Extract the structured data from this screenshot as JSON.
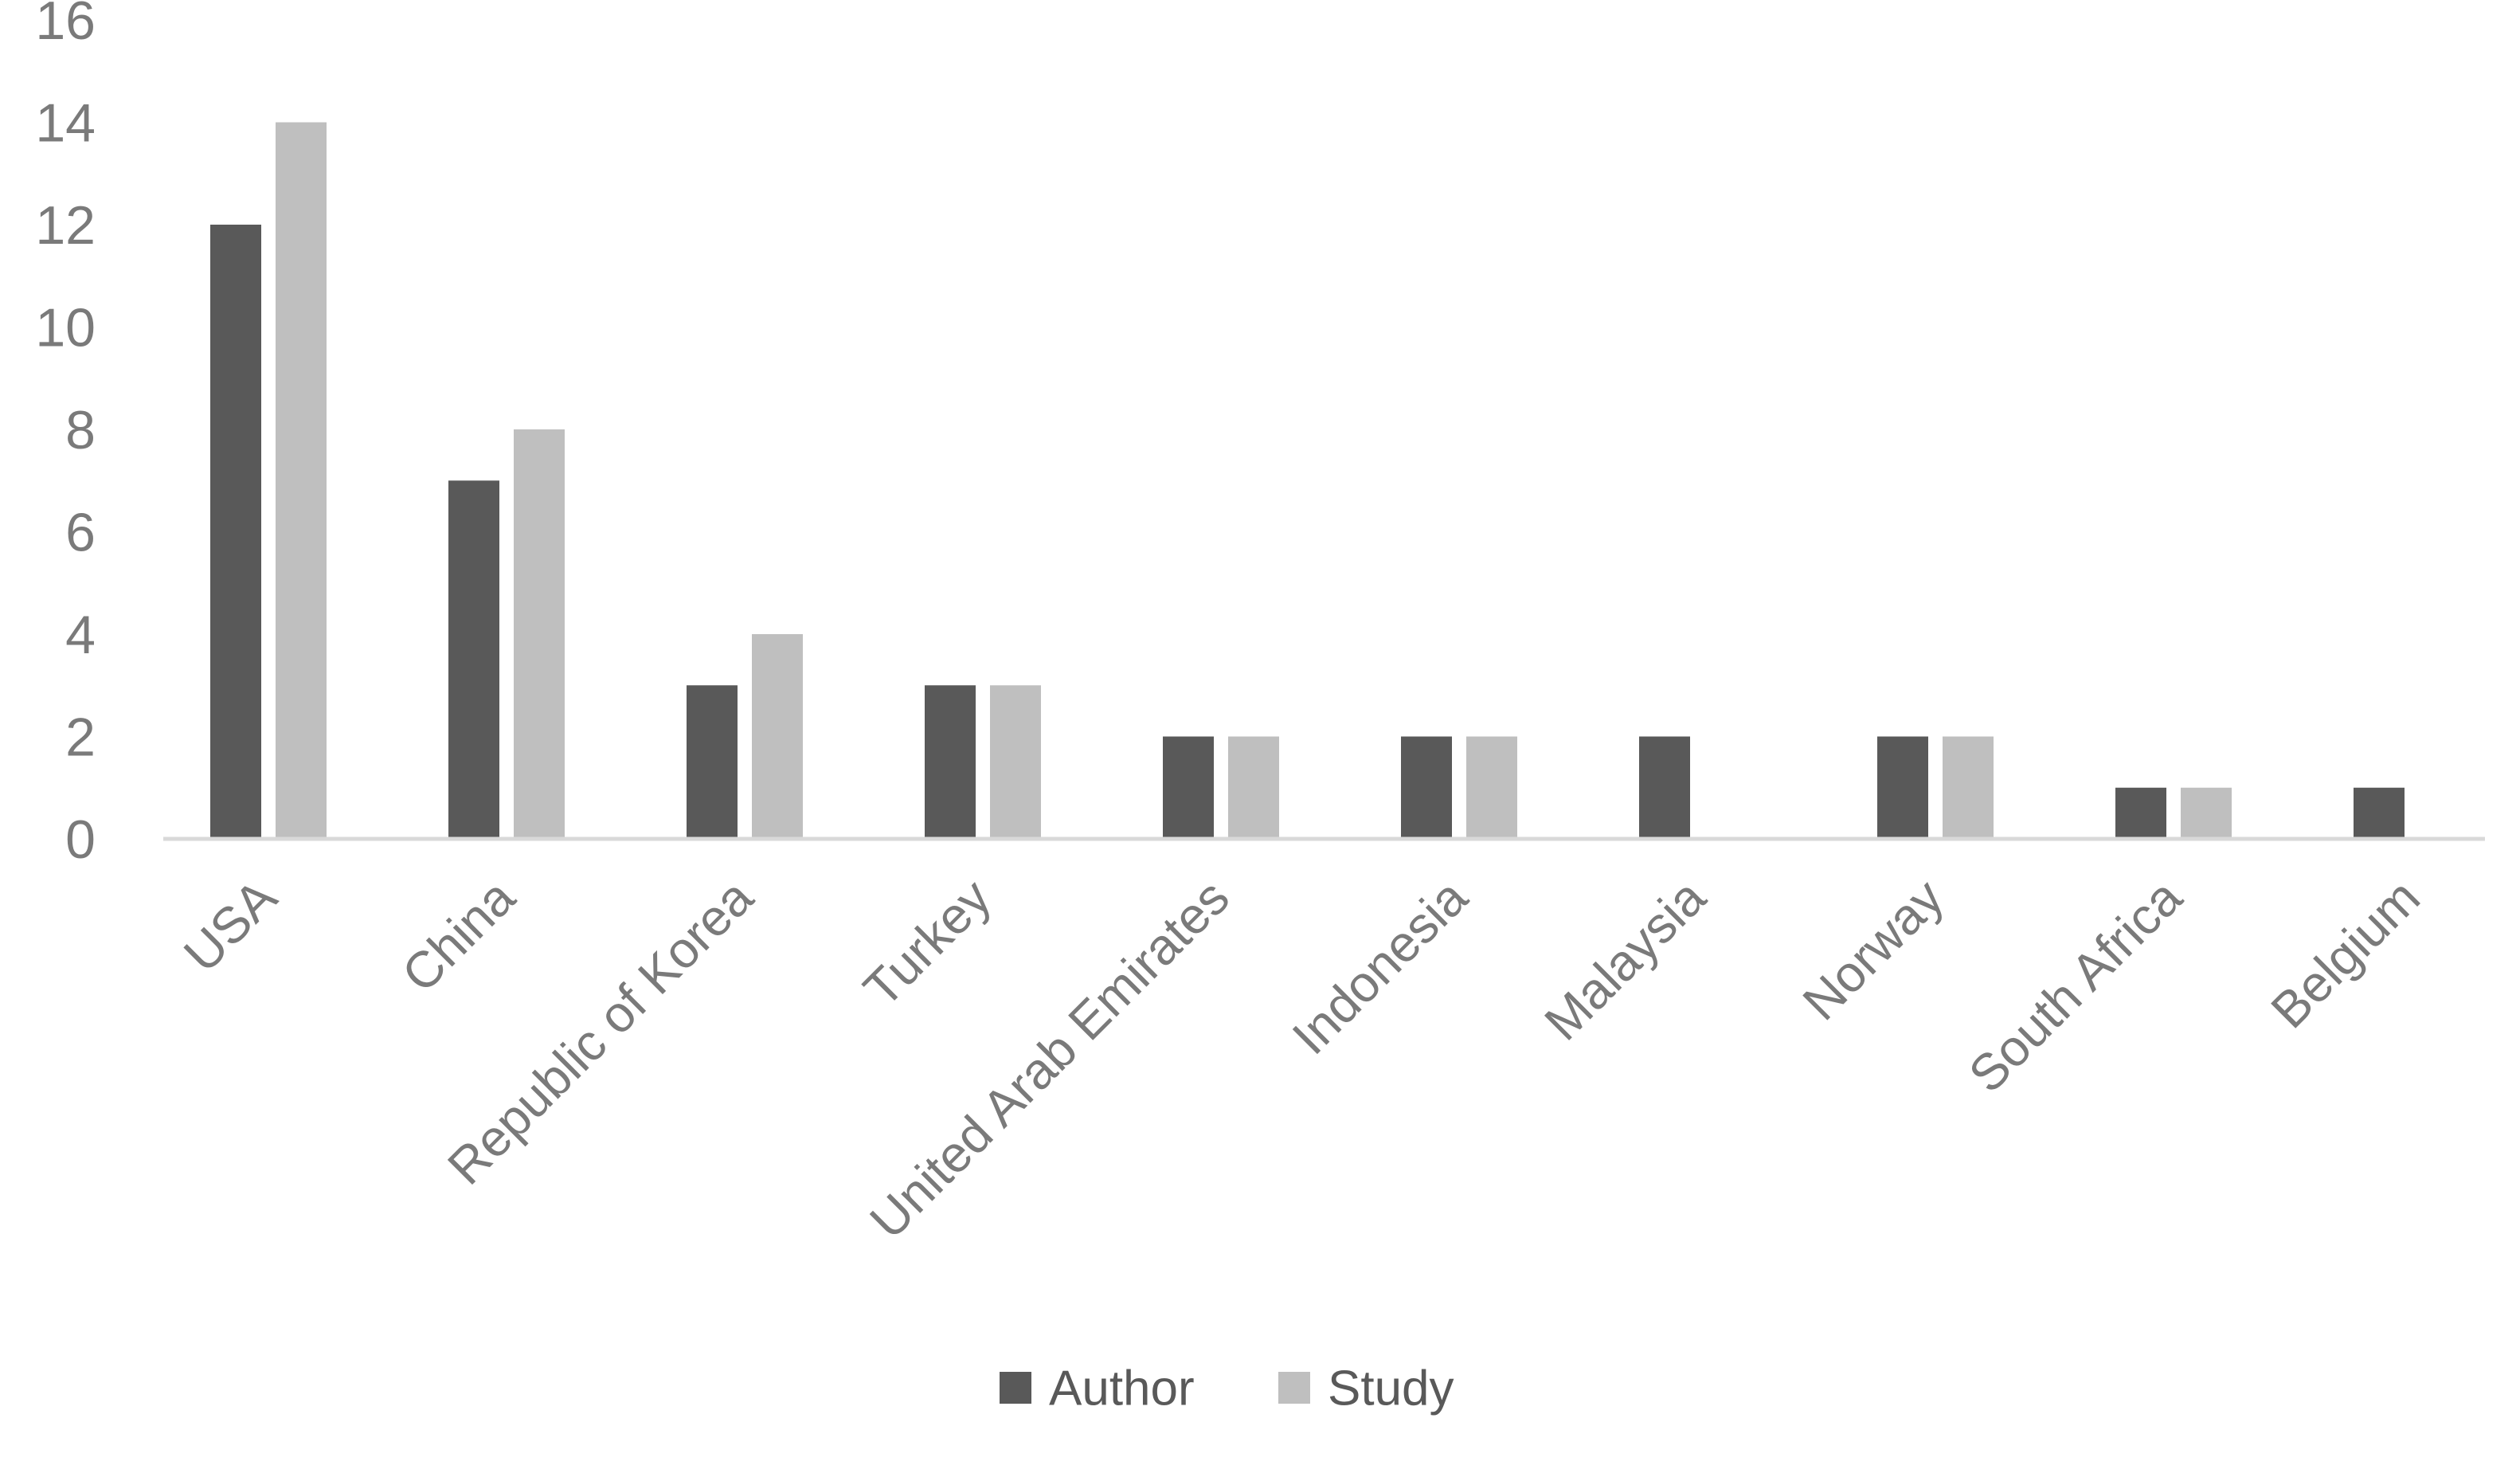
{
  "chart_data": {
    "type": "bar",
    "title": "",
    "xlabel": "",
    "ylabel": "",
    "categories": [
      "USA",
      "China",
      "Republic of Korea",
      "Turkey",
      "United Arab Emirates",
      "Indonesia",
      "Malaysia",
      "Norway",
      "South Africa",
      "Belgium"
    ],
    "series": [
      {
        "name": "Author",
        "color": "#595959",
        "values": [
          12,
          7,
          3,
          3,
          2,
          2,
          2,
          2,
          1,
          1
        ]
      },
      {
        "name": "Study",
        "color": "#bfbfbf",
        "values": [
          14,
          8,
          4,
          3,
          2,
          2,
          null,
          2,
          1,
          null
        ]
      }
    ],
    "y_ticks": [
      0,
      2,
      4,
      6,
      8,
      10,
      12,
      14,
      16
    ],
    "ylim": [
      0,
      16
    ],
    "grid": false,
    "legend_position": "bottom",
    "legend": [
      {
        "label": "Author",
        "color": "#595959"
      },
      {
        "label": "Study",
        "color": "#bfbfbf"
      }
    ],
    "colors": {
      "axis_line": "#d9d9d9",
      "tick_label": "#7a7a7a",
      "category_label": "#7a7a7a",
      "legend_text": "#595959",
      "background": "#ffffff"
    },
    "category_label_rotation_deg": -45
  }
}
